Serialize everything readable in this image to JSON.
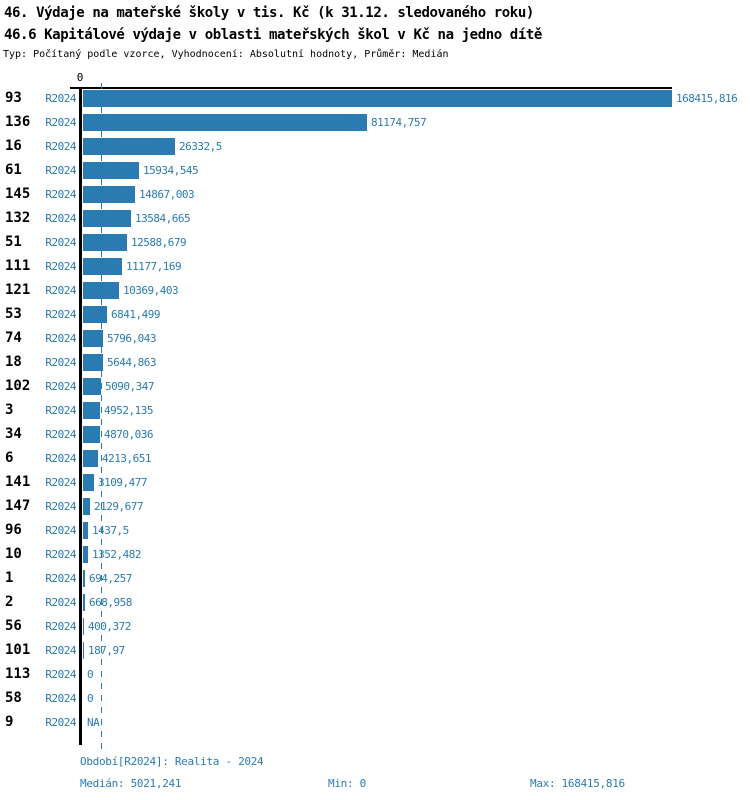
{
  "header": {
    "title_line1": "46. Výdaje na mateřské školy v tis. Kč (k 31.12. sledovaného roku)",
    "title_line2": "46.6 Kapitálové výdaje v oblasti mateřských škol v Kč na jedno dítě",
    "meta_line": "Typ: Počítaný podle vzorce, Vyhodnocení: Absolutní hodnoty, Průměr: Medián"
  },
  "axis": {
    "zero_tick_label": "0"
  },
  "colors": {
    "bar": "#2b7bb3",
    "accent_text": "#2b7bb3",
    "axis": "#000000"
  },
  "footer": {
    "period_label": "Období[R2024]: Realita - 2024",
    "median_label": "Medián: 5021,241",
    "min_label": "Min: 0",
    "max_label": "Max: 168415,816"
  },
  "chart_data": {
    "type": "bar",
    "orientation": "horizontal",
    "title": "46.6 Kapitálové výdaje v oblasti mateřských škol v Kč na jedno dítě",
    "series_label": "R2024",
    "categories": [
      "93",
      "136",
      "16",
      "61",
      "145",
      "132",
      "51",
      "111",
      "121",
      "53",
      "74",
      "18",
      "102",
      "3",
      "34",
      "6",
      "141",
      "147",
      "96",
      "10",
      "1",
      "2",
      "56",
      "101",
      "113",
      "58",
      "9"
    ],
    "values": [
      168415.816,
      81174.757,
      26332.5,
      15934.545,
      14867.003,
      13584.665,
      12588.679,
      11177.169,
      10369.403,
      6841.499,
      5796.043,
      5644.863,
      5090.347,
      4952.135,
      4870.036,
      4213.651,
      3109.477,
      2129.677,
      1437.5,
      1352.482,
      694.257,
      668.958,
      400.372,
      187.97,
      0,
      0,
      null
    ],
    "value_labels": [
      "168415,816",
      "81174,757",
      "26332,5",
      "15934,545",
      "14867,003",
      "13584,665",
      "12588,679",
      "11177,169",
      "10369,403",
      "6841,499",
      "5796,043",
      "5644,863",
      "5090,347",
      "4952,135",
      "4870,036",
      "4213,651",
      "3109,477",
      "2129,677",
      "1437,5",
      "1352,482",
      "694,257",
      "668,958",
      "400,372",
      "187,97",
      "0",
      "0",
      "NA"
    ],
    "xlim": [
      0,
      168415.816
    ],
    "median": 5021.241,
    "min": 0,
    "max": 168415.816,
    "grid": false,
    "legend_position": "none"
  }
}
